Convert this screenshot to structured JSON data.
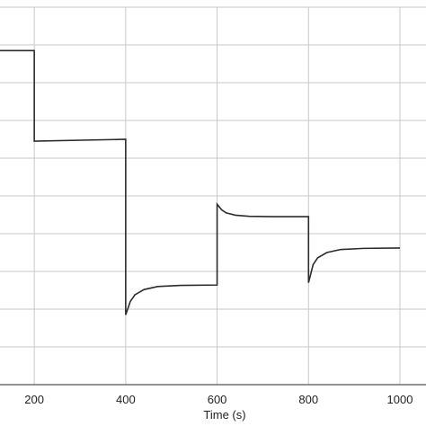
{
  "chart_data": {
    "type": "line",
    "xlabel": "Time (s)",
    "ylabel": "",
    "xlim": [
      125,
      1000
    ],
    "ylim": [
      0,
      1
    ],
    "x_ticks": [
      "200",
      "400",
      "600",
      "800",
      "1000"
    ],
    "grid": true,
    "colors": {
      "line": "#2b2b2b",
      "grid": "#c8c8c8",
      "frame": "#555555"
    },
    "series": [
      {
        "x": [
          125,
          200,
          200.001,
          400,
          400.001,
          410,
          420,
          440,
          470,
          520,
          600,
          600.001,
          610,
          620,
          640,
          670,
          720,
          800,
          800.001,
          810,
          820,
          840,
          870,
          920,
          1000
        ],
        "y": [
          0.885,
          0.885,
          0.645,
          0.65,
          0.185,
          0.22,
          0.238,
          0.252,
          0.26,
          0.263,
          0.264,
          0.478,
          0.463,
          0.455,
          0.449,
          0.446,
          0.445,
          0.445,
          0.27,
          0.318,
          0.336,
          0.35,
          0.358,
          0.361,
          0.362
        ]
      }
    ]
  }
}
